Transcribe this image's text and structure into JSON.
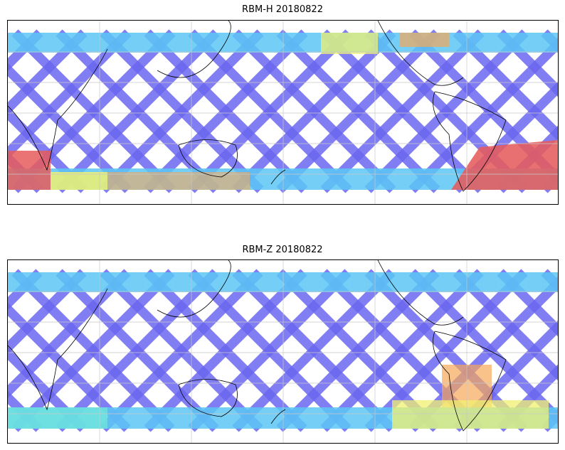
{
  "panels": [
    {
      "title": "RBM-H 20180822",
      "tracks": [
        {
          "color": "#6b66f0"
        },
        {
          "color": "#5fb8ff"
        }
      ],
      "hotspots": [
        {
          "region": "southern-indian-ocean-west",
          "color": "#e86060"
        },
        {
          "region": "southern-indian-ocean-yellow",
          "color": "#f2e26a"
        },
        {
          "region": "south-pacific-east",
          "color": "#e65c5c"
        },
        {
          "region": "north-pacific-yellow",
          "color": "#e8f070"
        }
      ]
    },
    {
      "title": "RBM-Z 20180822",
      "tracks": [
        {
          "color": "#6b66f0"
        },
        {
          "color": "#5fb8ff"
        }
      ],
      "hotspots": [
        {
          "region": "south-pacific-orange",
          "color": "#f6b060"
        },
        {
          "region": "south-pacific-yellow",
          "color": "#eef070"
        }
      ]
    }
  ],
  "colors": {
    "track_low": "#6b66f0",
    "track_mid": "#5cc6f5",
    "track_cyan": "#6ee8d8",
    "track_green": "#a6f07a",
    "track_yellow": "#f0f070",
    "track_orange": "#f6a85a",
    "track_red": "#e65c5c",
    "coast": "#000000",
    "grid": "#c8c8c8"
  }
}
